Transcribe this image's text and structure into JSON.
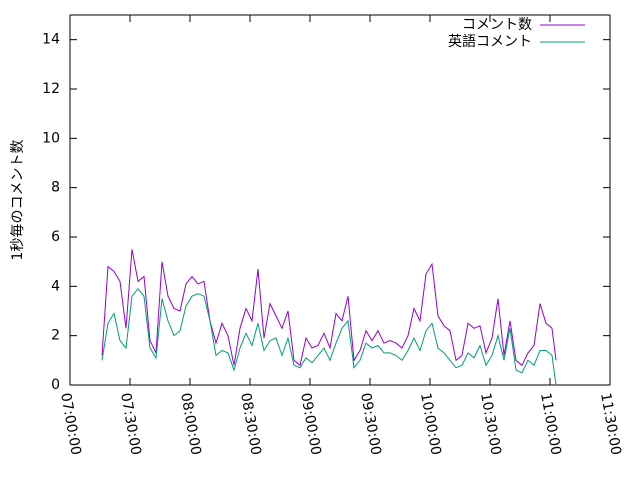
{
  "chart_data": {
    "type": "line",
    "ylabel": "1秒毎のコメント数",
    "x": [
      "07:16:00",
      "07:19:00",
      "07:22:00",
      "07:25:00",
      "07:28:00",
      "07:31:00",
      "07:34:00",
      "07:37:00",
      "07:40:00",
      "07:43:00",
      "07:46:00",
      "07:49:00",
      "07:52:00",
      "07:55:00",
      "07:58:00",
      "08:01:00",
      "08:04:00",
      "08:07:00",
      "08:10:00",
      "08:13:00",
      "08:16:00",
      "08:19:00",
      "08:22:00",
      "08:25:00",
      "08:28:00",
      "08:31:00",
      "08:34:00",
      "08:37:00",
      "08:40:00",
      "08:43:00",
      "08:46:00",
      "08:49:00",
      "08:52:00",
      "08:55:00",
      "08:58:00",
      "09:01:00",
      "09:04:00",
      "09:07:00",
      "09:10:00",
      "09:13:00",
      "09:16:00",
      "09:19:00",
      "09:22:00",
      "09:25:00",
      "09:28:00",
      "09:31:00",
      "09:34:00",
      "09:37:00",
      "09:40:00",
      "09:43:00",
      "09:46:00",
      "09:49:00",
      "09:52:00",
      "09:55:00",
      "09:58:00",
      "10:01:00",
      "10:04:00",
      "10:07:00",
      "10:10:00",
      "10:13:00",
      "10:16:00",
      "10:19:00",
      "10:22:00",
      "10:25:00",
      "10:28:00",
      "10:31:00",
      "10:34:00",
      "10:37:00",
      "10:40:00",
      "10:43:00",
      "10:46:00",
      "10:49:00",
      "10:52:00",
      "10:55:00",
      "10:58:00",
      "11:01:00",
      "11:03:00"
    ],
    "series": [
      {
        "name": "コメント数",
        "color": "#9400d3",
        "values": [
          1.2,
          4.8,
          4.6,
          4.2,
          2.3,
          5.5,
          4.2,
          4.4,
          1.8,
          1.3,
          5.0,
          3.6,
          3.1,
          3.0,
          4.1,
          4.4,
          4.1,
          4.2,
          2.6,
          1.7,
          2.5,
          2.0,
          0.8,
          2.3,
          3.1,
          2.6,
          4.7,
          1.9,
          3.3,
          2.8,
          2.3,
          3.0,
          1.0,
          0.8,
          1.9,
          1.5,
          1.6,
          2.1,
          1.5,
          2.9,
          2.6,
          3.6,
          1.0,
          1.4,
          2.2,
          1.8,
          2.2,
          1.7,
          1.8,
          1.7,
          1.5,
          2.0,
          3.1,
          2.6,
          4.5,
          4.9,
          2.8,
          2.4,
          2.2,
          1.0,
          1.2,
          2.5,
          2.3,
          2.4,
          1.3,
          1.9,
          3.5,
          1.2,
          2.6,
          1.0,
          0.8,
          1.3,
          1.6,
          3.3,
          2.5,
          2.3,
          1.0
        ]
      },
      {
        "name": "英語コメント",
        "color": "#009e73",
        "values": [
          1.0,
          2.5,
          2.9,
          1.8,
          1.5,
          3.6,
          3.9,
          3.6,
          1.5,
          1.1,
          3.5,
          2.6,
          2.0,
          2.2,
          3.2,
          3.6,
          3.7,
          3.6,
          2.6,
          1.2,
          1.4,
          1.3,
          0.6,
          1.5,
          2.1,
          1.6,
          2.5,
          1.4,
          1.8,
          1.9,
          1.2,
          1.9,
          0.8,
          0.7,
          1.1,
          0.9,
          1.2,
          1.5,
          1.0,
          1.7,
          2.3,
          2.6,
          0.7,
          1.0,
          1.7,
          1.5,
          1.6,
          1.3,
          1.3,
          1.2,
          1.0,
          1.4,
          1.9,
          1.4,
          2.2,
          2.5,
          1.5,
          1.3,
          1.0,
          0.7,
          0.8,
          1.3,
          1.1,
          1.6,
          0.8,
          1.2,
          2.0,
          1.0,
          2.3,
          0.6,
          0.5,
          1.0,
          0.8,
          1.4,
          1.4,
          1.2,
          0.0
        ]
      }
    ],
    "xlim": [
      "07:00:00",
      "11:30:00"
    ],
    "xticks": [
      "07:00:00",
      "07:30:00",
      "08:00:00",
      "08:30:00",
      "09:00:00",
      "09:30:00",
      "10:00:00",
      "10:30:00",
      "11:00:00",
      "11:30:00"
    ],
    "ylim": [
      0,
      15
    ],
    "yticks": [
      0,
      2,
      4,
      6,
      8,
      10,
      12,
      14
    ],
    "legend": "top-right"
  }
}
